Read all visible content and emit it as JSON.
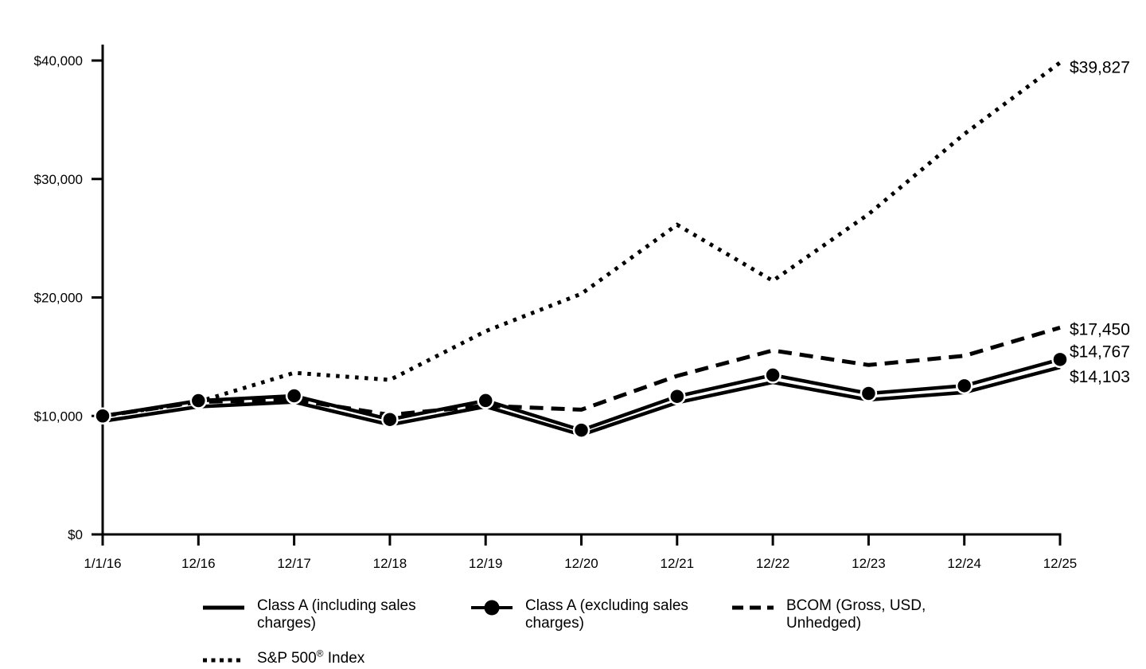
{
  "chart_data": {
    "type": "line",
    "title": "",
    "x_categories": [
      "1/1/16",
      "12/16",
      "12/17",
      "12/18",
      "12/19",
      "12/20",
      "12/21",
      "12/22",
      "12/23",
      "12/24",
      "12/25"
    ],
    "y_axis": {
      "min": 0,
      "max": 40000,
      "ticks": [
        0,
        10000,
        20000,
        30000,
        40000
      ],
      "tick_labels": [
        "$0",
        "$10,000",
        "$20,000",
        "$30,000",
        "$40,000"
      ]
    },
    "grid": false,
    "legend_position": "bottom",
    "series": [
      {
        "name": "Class A (including sales charges)",
        "style": "solid",
        "end_label": "$14,103",
        "values": [
          9550,
          10780,
          11170,
          9260,
          10790,
          8400,
          11120,
          12840,
          11360,
          11980,
          14103
        ]
      },
      {
        "name": "Class A (excluding sales charges)",
        "style": "solid-marker",
        "end_label": "$14,767",
        "values": [
          10000,
          11290,
          11700,
          9700,
          11300,
          8800,
          11650,
          13450,
          11900,
          12550,
          14767
        ]
      },
      {
        "name": "BCOM (Gross, USD, Unhedged)",
        "style": "dashed",
        "end_label": "$17,450",
        "values": [
          10000,
          11177,
          11367,
          10088,
          10864,
          10525,
          13378,
          15530,
          14302,
          15071,
          17450
        ]
      },
      {
        "name": "S&P 500® Index",
        "style": "dotted",
        "end_label": "$39,827",
        "values": [
          10000,
          11196,
          13640,
          13043,
          17150,
          20306,
          26136,
          21402,
          27029,
          33792,
          39827
        ]
      }
    ]
  }
}
